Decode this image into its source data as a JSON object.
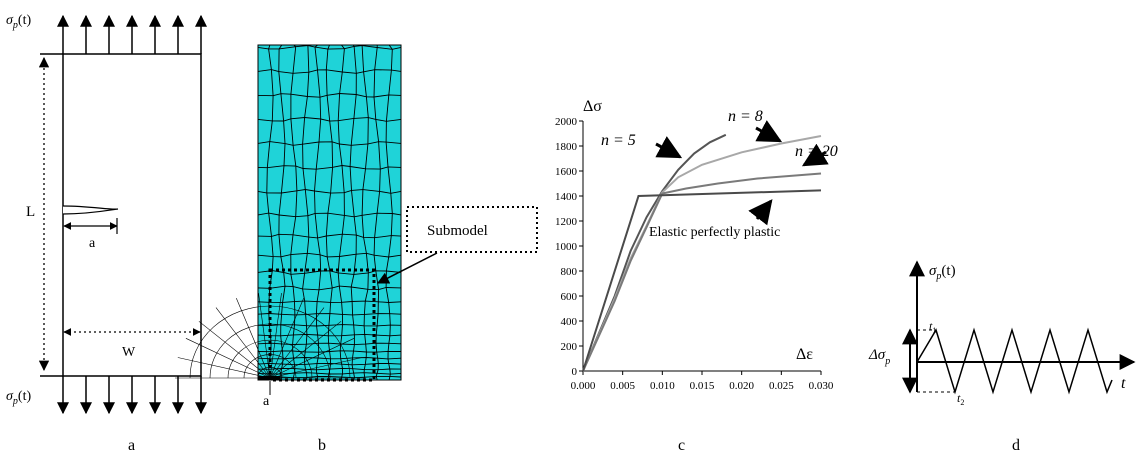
{
  "panels": {
    "a": {
      "caption": "a",
      "stress_label_top": "σ",
      "stress_label_sub": "p",
      "stress_label_arg": "(t)",
      "stress_label_bottom": "σ",
      "length_label": "L",
      "crack_label": "a",
      "width_label": "W"
    },
    "b": {
      "caption": "b",
      "submodel_label": "Submodel",
      "crack_label": "a",
      "mesh_color": "#1fd3d8"
    },
    "c": {
      "caption": "c",
      "ylabel": "Δσ",
      "xlabel": "Δε",
      "annotations": {
        "n5": "n = 5",
        "n8": "n = 8",
        "n20": "n = 20",
        "epp": "Elastic perfectly plastic"
      }
    },
    "d": {
      "caption": "d",
      "y_label_sym": "σ",
      "y_label_sub": "p",
      "y_label_arg": "(t)",
      "amp_label_sym": "Δσ",
      "amp_label_sub": "p",
      "t_axis": "t",
      "t1_sym": "t",
      "t1_sub": "1",
      "t2_sym": "t",
      "t2_sub": "2"
    }
  },
  "chart_data": {
    "type": "line",
    "ylabel": "Δσ",
    "xlabel": "Δε",
    "xlim": [
      0,
      0.03
    ],
    "ylim": [
      0,
      2000
    ],
    "x_ticks": [
      "0.000",
      "0.005",
      "0.010",
      "0.015",
      "0.020",
      "0.025",
      "0.030"
    ],
    "y_ticks": [
      "0",
      "200",
      "400",
      "600",
      "800",
      "1000",
      "1200",
      "1400",
      "1600",
      "1800",
      "2000"
    ],
    "series": [
      {
        "name": "n = 5",
        "color": "#555555",
        "points": [
          [
            0,
            0
          ],
          [
            0.004,
            600
          ],
          [
            0.006,
            960
          ],
          [
            0.008,
            1230
          ],
          [
            0.01,
            1440
          ],
          [
            0.012,
            1610
          ],
          [
            0.014,
            1740
          ],
          [
            0.016,
            1830
          ],
          [
            0.018,
            1890
          ]
        ]
      },
      {
        "name": "n = 8",
        "color": "#a8a8a8",
        "points": [
          [
            0,
            0
          ],
          [
            0.004,
            580
          ],
          [
            0.006,
            900
          ],
          [
            0.008,
            1160
          ],
          [
            0.01,
            1430
          ],
          [
            0.012,
            1550
          ],
          [
            0.015,
            1650
          ],
          [
            0.02,
            1750
          ],
          [
            0.025,
            1820
          ],
          [
            0.03,
            1880
          ]
        ]
      },
      {
        "name": "n = 20",
        "color": "#7a7a7a",
        "points": [
          [
            0,
            0
          ],
          [
            0.004,
            560
          ],
          [
            0.006,
            880
          ],
          [
            0.008,
            1150
          ],
          [
            0.01,
            1420
          ],
          [
            0.013,
            1460
          ],
          [
            0.017,
            1500
          ],
          [
            0.022,
            1540
          ],
          [
            0.03,
            1580
          ]
        ]
      },
      {
        "name": "Elastic perfectly plastic",
        "color": "#4a4a4a",
        "points": [
          [
            0,
            0
          ],
          [
            0.007,
            1400
          ],
          [
            0.03,
            1445
          ]
        ]
      }
    ]
  }
}
